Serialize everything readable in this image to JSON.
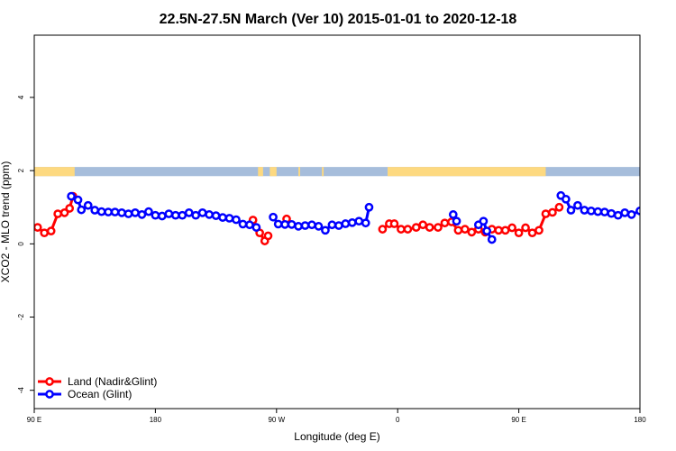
{
  "chart_data": {
    "type": "line",
    "title": "22.5N-27.5N March (Ver 10)   2015-01-01 to 2020-12-18",
    "xlabel": "Longitude (deg E)",
    "ylabel": "XCO2 - MLO trend (ppm)",
    "xlim": [
      90,
      450
    ],
    "ylim": [
      -4.5,
      5.7
    ],
    "x_ticks": [
      {
        "value": 90,
        "label": "90 E"
      },
      {
        "value": 162,
        "label": "180"
      },
      {
        "value": 234,
        "label": "90 W"
      },
      {
        "value": 306,
        "label": "0"
      },
      {
        "value": 378,
        "label": "90 E"
      },
      {
        "value": 450,
        "label": "180"
      }
    ],
    "y_ticks": [
      {
        "value": -4,
        "label": "-4"
      },
      {
        "value": -2,
        "label": "-2"
      },
      {
        "value": 0,
        "label": "0"
      },
      {
        "value": 2,
        "label": "2"
      },
      {
        "value": 4,
        "label": "4"
      }
    ],
    "grid": false,
    "legend_position": "bottom-left",
    "map_strip": {
      "y_range": [
        1.85,
        2.1
      ],
      "ocean_color": "#a6bddb",
      "land_color": "#fdd980",
      "land_segments": [
        [
          90,
          114
        ],
        [
          223,
          226
        ],
        [
          230,
          234
        ],
        [
          247,
          248
        ],
        [
          261,
          262
        ],
        [
          300,
          394
        ]
      ]
    },
    "series": [
      {
        "name": "Land (Nadir&Glint)",
        "color": "#ff0000",
        "segments": [
          [
            [
              92,
              0.45
            ],
            [
              96,
              0.3
            ],
            [
              100,
              0.35
            ],
            [
              104,
              0.82
            ],
            [
              108,
              0.85
            ],
            [
              111,
              0.97
            ],
            [
              113,
              1.3
            ]
          ],
          [
            [
              220,
              0.65
            ],
            [
              224,
              0.3
            ],
            [
              227,
              0.08
            ],
            [
              229,
              0.22
            ]
          ],
          [
            [
              240,
              0.68
            ]
          ],
          [
            [
              297,
              0.4
            ],
            [
              301,
              0.55
            ],
            [
              304,
              0.55
            ],
            [
              308,
              0.4
            ],
            [
              312,
              0.4
            ],
            [
              317,
              0.45
            ],
            [
              321,
              0.52
            ],
            [
              325,
              0.45
            ],
            [
              330,
              0.45
            ],
            [
              334,
              0.57
            ],
            [
              338,
              0.6
            ],
            [
              342,
              0.37
            ],
            [
              346,
              0.4
            ],
            [
              350,
              0.32
            ],
            [
              354,
              0.4
            ],
            [
              358,
              0.32
            ],
            [
              362,
              0.4
            ],
            [
              366,
              0.37
            ],
            [
              370,
              0.37
            ],
            [
              374,
              0.44
            ],
            [
              378,
              0.3
            ],
            [
              382,
              0.44
            ],
            [
              386,
              0.3
            ],
            [
              390,
              0.37
            ],
            [
              394,
              0.82
            ],
            [
              398,
              0.86
            ],
            [
              402,
              1.0
            ]
          ]
        ]
      },
      {
        "name": "Ocean (Glint)",
        "color": "#0000ff",
        "segments": [
          [
            [
              112,
              1.3
            ],
            [
              116,
              1.2
            ],
            [
              118,
              0.93
            ],
            [
              122,
              1.05
            ],
            [
              126,
              0.92
            ],
            [
              130,
              0.88
            ],
            [
              134,
              0.87
            ],
            [
              138,
              0.87
            ],
            [
              142,
              0.85
            ],
            [
              146,
              0.82
            ],
            [
              150,
              0.85
            ],
            [
              154,
              0.8
            ],
            [
              158,
              0.88
            ],
            [
              162,
              0.78
            ],
            [
              166,
              0.76
            ],
            [
              170,
              0.82
            ],
            [
              174,
              0.78
            ],
            [
              178,
              0.78
            ],
            [
              182,
              0.85
            ],
            [
              186,
              0.78
            ],
            [
              190,
              0.85
            ],
            [
              194,
              0.8
            ],
            [
              198,
              0.77
            ],
            [
              202,
              0.72
            ],
            [
              206,
              0.7
            ],
            [
              210,
              0.66
            ],
            [
              214,
              0.54
            ],
            [
              218,
              0.52
            ],
            [
              222,
              0.45
            ]
          ],
          [
            [
              232,
              0.73
            ],
            [
              235,
              0.54
            ],
            [
              239,
              0.53
            ],
            [
              243,
              0.53
            ],
            [
              247,
              0.48
            ],
            [
              251,
              0.5
            ],
            [
              255,
              0.52
            ],
            [
              259,
              0.48
            ],
            [
              263,
              0.37
            ],
            [
              267,
              0.52
            ],
            [
              271,
              0.5
            ],
            [
              275,
              0.55
            ],
            [
              279,
              0.58
            ],
            [
              283,
              0.62
            ],
            [
              287,
              0.57
            ],
            [
              289,
              1.0
            ]
          ],
          [
            [
              339,
              0.8
            ],
            [
              341,
              0.62
            ]
          ],
          [
            [
              354,
              0.52
            ],
            [
              357,
              0.62
            ],
            [
              359,
              0.35
            ],
            [
              362,
              0.12
            ]
          ],
          [
            [
              403,
              1.32
            ],
            [
              406,
              1.22
            ],
            [
              409,
              0.92
            ],
            [
              413,
              1.05
            ],
            [
              417,
              0.92
            ],
            [
              421,
              0.9
            ],
            [
              425,
              0.88
            ],
            [
              429,
              0.87
            ],
            [
              433,
              0.83
            ],
            [
              437,
              0.78
            ],
            [
              441,
              0.85
            ],
            [
              445,
              0.8
            ],
            [
              450,
              0.9
            ]
          ]
        ]
      }
    ]
  }
}
